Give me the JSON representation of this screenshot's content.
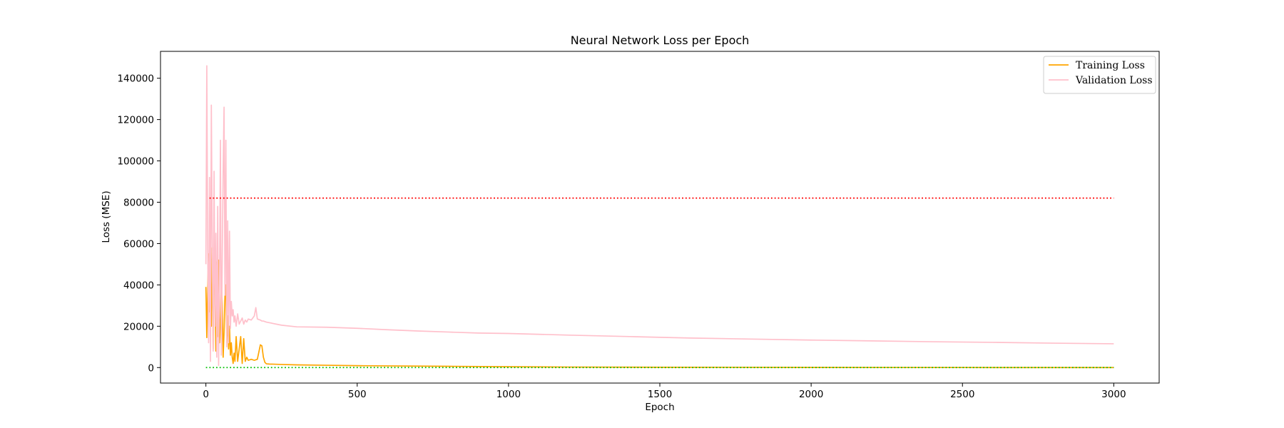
{
  "chart_data": {
    "type": "line",
    "title": "Neural Network Loss per Epoch",
    "xlabel": "Epoch",
    "ylabel": "Loss (MSE)",
    "xlim": [
      -150,
      3150
    ],
    "ylim": [
      -7500,
      153000
    ],
    "xticks": [
      0,
      500,
      1000,
      1500,
      2000,
      2500,
      3000
    ],
    "yticks": [
      0,
      20000,
      40000,
      60000,
      80000,
      100000,
      120000,
      140000
    ],
    "grid": false,
    "legend_position": "top-right",
    "series": [
      {
        "name": "Training Loss",
        "color": "#ffa500",
        "style": "solid",
        "x": [
          0,
          3,
          6,
          9,
          12,
          15,
          18,
          21,
          24,
          27,
          30,
          33,
          36,
          39,
          42,
          45,
          48,
          51,
          54,
          57,
          60,
          63,
          66,
          69,
          72,
          75,
          78,
          81,
          84,
          87,
          90,
          93,
          96,
          100,
          105,
          110,
          115,
          120,
          125,
          130,
          135,
          140,
          150,
          160,
          170,
          180,
          185,
          190,
          195,
          200,
          210,
          250,
          300,
          400,
          500,
          600,
          800,
          1000,
          1200,
          1500,
          2000,
          2500,
          3000
        ],
        "values": [
          39000,
          14500,
          38000,
          55000,
          27000,
          45000,
          20000,
          58000,
          9000,
          61000,
          34000,
          8000,
          51000,
          15000,
          52000,
          12000,
          22000,
          43000,
          30000,
          5000,
          17000,
          35000,
          40000,
          12000,
          25000,
          9000,
          20000,
          6000,
          12000,
          5000,
          2000,
          7000,
          3000,
          15000,
          3000,
          9000,
          15000,
          2000,
          14000,
          3000,
          5000,
          3500,
          4000,
          3500,
          4000,
          11000,
          10500,
          5000,
          2500,
          1800,
          1700,
          1500,
          1300,
          1100,
          900,
          800,
          600,
          400,
          250,
          150,
          60,
          20,
          5
        ]
      },
      {
        "name": "Validation Loss",
        "color": "#ffc0cb",
        "style": "solid",
        "x": [
          0,
          3,
          6,
          9,
          12,
          15,
          18,
          21,
          24,
          27,
          30,
          33,
          36,
          39,
          42,
          45,
          48,
          51,
          54,
          57,
          60,
          63,
          66,
          69,
          72,
          75,
          78,
          81,
          84,
          87,
          90,
          93,
          96,
          100,
          105,
          110,
          115,
          120,
          125,
          130,
          135,
          140,
          150,
          160,
          165,
          170,
          180,
          185,
          190,
          200,
          250,
          300,
          400,
          500,
          600,
          700,
          800,
          900,
          1000,
          1200,
          1400,
          1600,
          1800,
          2000,
          2200,
          2400,
          2600,
          2800,
          3000
        ],
        "values": [
          50000,
          146000,
          57000,
          12000,
          92000,
          3000,
          127000,
          60000,
          8000,
          95000,
          20000,
          65000,
          5000,
          78000,
          1000,
          40000,
          110000,
          6000,
          52000,
          95000,
          126000,
          35000,
          110000,
          10000,
          71000,
          12000,
          66000,
          19000,
          32000,
          25000,
          28000,
          22000,
          25000,
          20000,
          26000,
          21000,
          22500,
          24000,
          21000,
          23000,
          22000,
          23500,
          23000,
          25000,
          29000,
          23500,
          23000,
          22500,
          22500,
          22000,
          20500,
          19700,
          19500,
          19000,
          18300,
          17700,
          17200,
          16700,
          16500,
          15700,
          15000,
          14300,
          13800,
          13300,
          12900,
          12500,
          12200,
          11800,
          11500
        ]
      },
      {
        "name": "",
        "color": "#ff0000",
        "style": "dotted",
        "x": [
          12,
          3000
        ],
        "values": [
          82000,
          82000
        ]
      },
      {
        "name": "",
        "color": "#00c000",
        "style": "dotted",
        "x": [
          0,
          3000
        ],
        "values": [
          0,
          0
        ]
      }
    ]
  }
}
